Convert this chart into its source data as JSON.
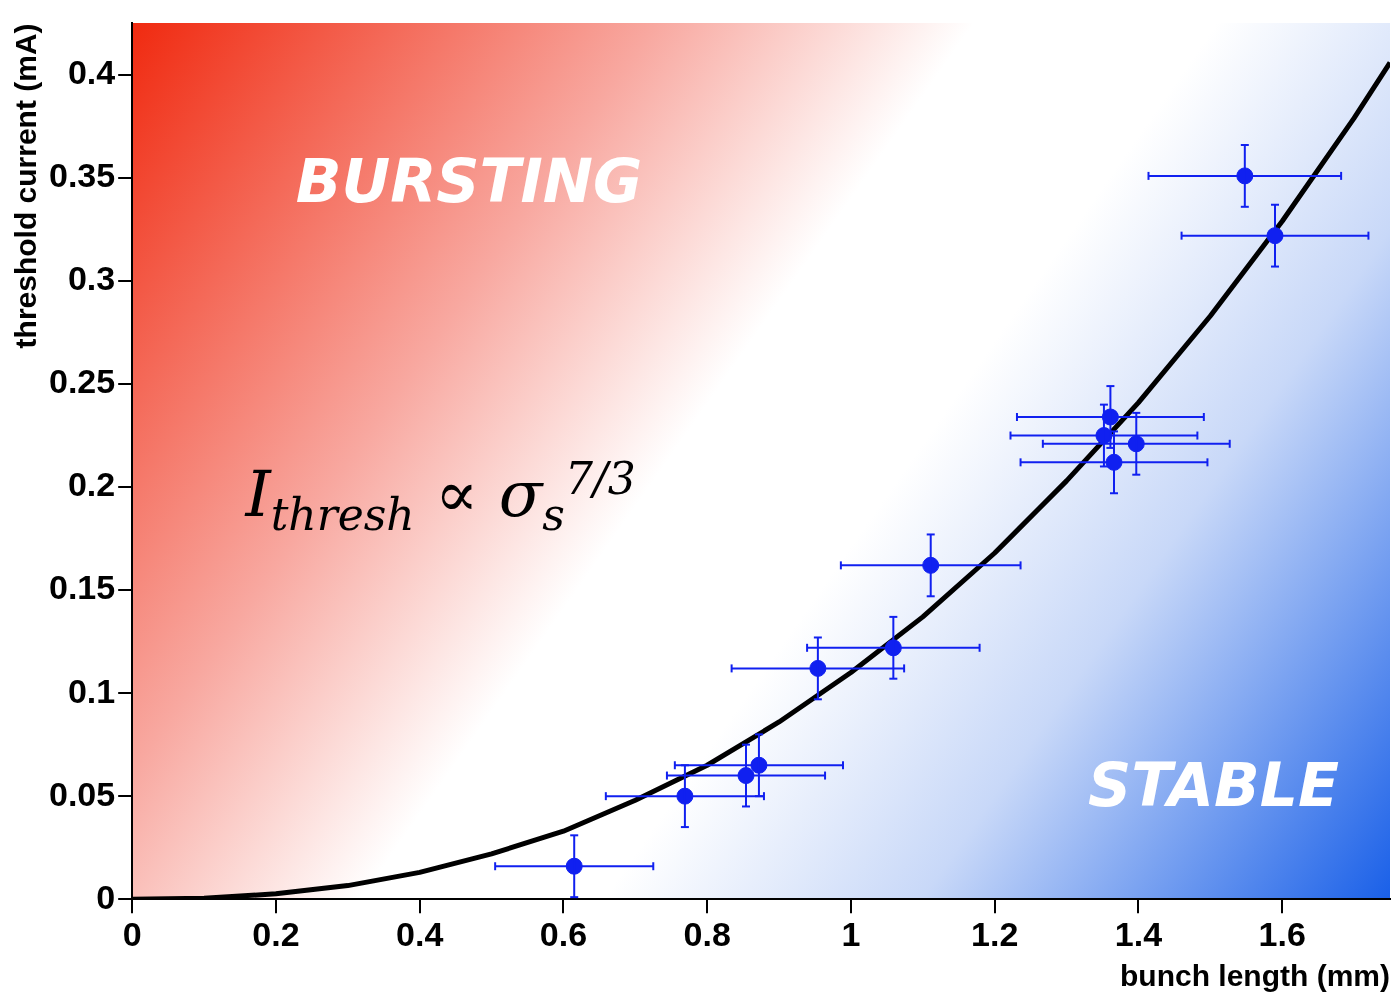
{
  "chart_data": {
    "type": "scatter",
    "xlabel": "bunch length (mm)",
    "ylabel": "threshold current (mA)",
    "xlim": [
      0,
      1.75
    ],
    "xticks": [
      0,
      0.2,
      0.4,
      0.6,
      0.8,
      1,
      1.2,
      1.4,
      1.6
    ],
    "ylim": [
      0,
      0.425
    ],
    "yticks": [
      0,
      0.05,
      0.1,
      0.15,
      0.2,
      0.25,
      0.3,
      0.35,
      0.4
    ],
    "grid": false,
    "legend": false,
    "marker": "circle",
    "annotations": [
      "BURSTING",
      "STABLE",
      "I$_{thresh}$ ∝ σ$_{s}$$^{7/3}$"
    ],
    "series": [
      {
        "color": "#1020f0",
        "x": [
          0.615,
          0.769,
          0.854,
          0.872,
          0.954,
          1.059,
          1.111,
          1.352,
          1.361,
          1.366,
          1.397,
          1.548,
          1.59
        ],
        "values": [
          0.016,
          0.05,
          0.06,
          0.065,
          0.112,
          0.122,
          0.162,
          0.225,
          0.234,
          0.212,
          0.221,
          0.351,
          0.322
        ],
        "xerrors": [
          0.11,
          0.11,
          0.11,
          0.117,
          0.12,
          0.12,
          0.125,
          0.13,
          0.13,
          0.13,
          0.13,
          0.134,
          0.13
        ],
        "errors": [
          0.015,
          0.015,
          0.015,
          0.015,
          0.015,
          0.015,
          0.015,
          0.015,
          0.015,
          0.015,
          0.015,
          0.015,
          0.015
        ]
      },
      {
        "type": "line",
        "color": "#000000",
        "marker": "none",
        "x": [
          0,
          0.1,
          0.2,
          0.3,
          0.4,
          0.5,
          0.6,
          0.7,
          0.8,
          0.9,
          1,
          1.1,
          1.2,
          1.3,
          1.4,
          1.5,
          1.6,
          1.7,
          1.75
        ],
        "values": [
          0,
          0.0005,
          0.0026,
          0.0066,
          0.013,
          0.022,
          0.033,
          0.048,
          0.065,
          0.086,
          0.11,
          0.137,
          0.168,
          0.203,
          0.241,
          0.283,
          0.329,
          0.379,
          0.406
        ]
      }
    ]
  }
}
